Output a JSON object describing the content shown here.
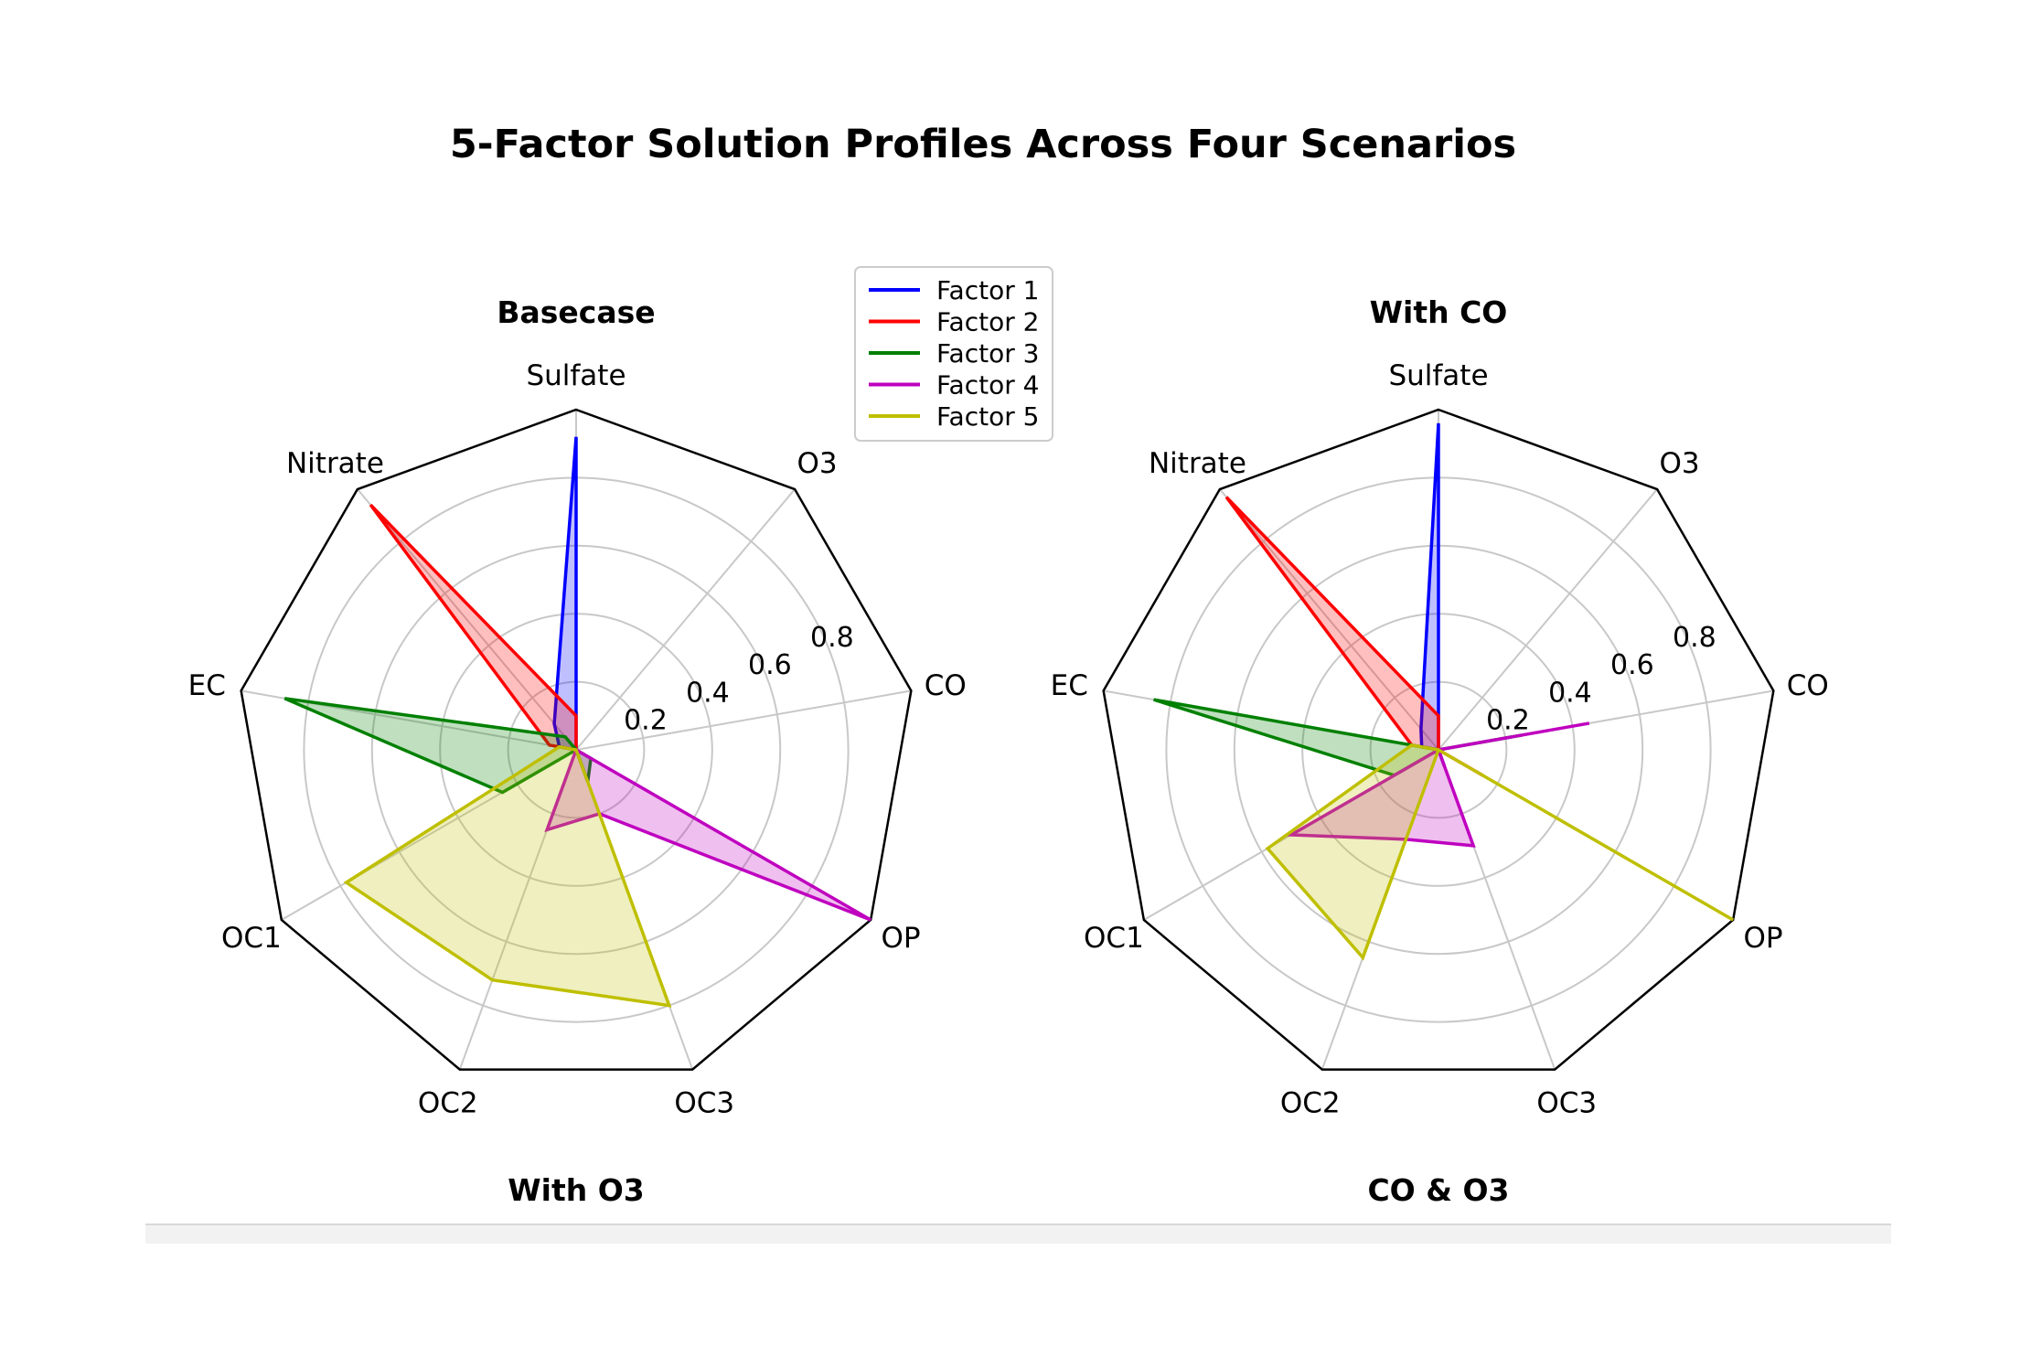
{
  "figure": {
    "title": "5-Factor Solution Profiles Across Four Scenarios",
    "bottom_titles": [
      "With O3",
      "CO & O3"
    ]
  },
  "legend": {
    "position": "top-center",
    "entries": [
      {
        "label": "Factor 1",
        "color": "#0000ff"
      },
      {
        "label": "Factor 2",
        "color": "#ff0000"
      },
      {
        "label": "Factor 3",
        "color": "#008000"
      },
      {
        "label": "Factor 4",
        "color": "#bf00bf"
      },
      {
        "label": "Factor 5",
        "color": "#bfbf00"
      }
    ]
  },
  "chart_data": [
    {
      "type": "radar",
      "title": "Basecase",
      "axes": [
        "Sulfate",
        "O3",
        "CO",
        "OP",
        "OC3",
        "OC2",
        "OC1",
        "EC",
        "Nitrate"
      ],
      "radial_ticks": [
        "0.2",
        "0.4",
        "0.6",
        "0.8"
      ],
      "tick_values": [
        0.2,
        0.4,
        0.6,
        0.8
      ],
      "rlim": [
        0,
        1.0
      ],
      "grid": true,
      "series": [
        {
          "name": "Factor 1",
          "color": "#0000ff",
          "values": [
            0.92,
            0.0,
            0.0,
            0.0,
            0.1,
            0.0,
            0.0,
            0.05,
            0.1
          ]
        },
        {
          "name": "Factor 2",
          "color": "#ff0000",
          "values": [
            0.1,
            0.0,
            0.0,
            0.0,
            0.0,
            0.0,
            0.0,
            0.08,
            0.94
          ]
        },
        {
          "name": "Factor 3",
          "color": "#008000",
          "values": [
            0.0,
            0.0,
            0.0,
            0.05,
            0.1,
            0.0,
            0.25,
            0.87,
            0.05
          ]
        },
        {
          "name": "Factor 4",
          "color": "#bf00bf",
          "values": [
            0.0,
            0.0,
            0.0,
            1.0,
            0.2,
            0.25,
            0.0,
            0.05,
            0.0
          ]
        },
        {
          "name": "Factor 5",
          "color": "#bfbf00",
          "values": [
            0.0,
            0.0,
            0.0,
            0.0,
            0.8,
            0.72,
            0.78,
            0.05,
            0.0
          ]
        }
      ]
    },
    {
      "type": "radar",
      "title": "With CO",
      "axes": [
        "Sulfate",
        "O3",
        "CO",
        "OP",
        "OC3",
        "OC2",
        "OC1",
        "EC",
        "Nitrate"
      ],
      "radial_ticks": [
        "0.2",
        "0.4",
        "0.6",
        "0.8"
      ],
      "tick_values": [
        0.2,
        0.4,
        0.6,
        0.8
      ],
      "rlim": [
        0,
        1.0
      ],
      "grid": true,
      "series": [
        {
          "name": "Factor 1",
          "color": "#0000ff",
          "values": [
            0.96,
            0.0,
            0.0,
            0.0,
            0.05,
            0.0,
            0.0,
            0.05,
            0.08
          ]
        },
        {
          "name": "Factor 2",
          "color": "#ff0000",
          "values": [
            0.1,
            0.0,
            0.0,
            0.15,
            0.0,
            0.0,
            0.0,
            0.08,
            0.97
          ]
        },
        {
          "name": "Factor 3",
          "color": "#008000",
          "values": [
            0.0,
            0.0,
            0.25,
            0.0,
            0.0,
            0.0,
            0.15,
            0.85,
            0.0
          ]
        },
        {
          "name": "Factor 4",
          "color": "#bf00bf",
          "values": [
            0.0,
            0.0,
            0.45,
            0.0,
            0.3,
            0.28,
            0.5,
            0.0,
            0.0
          ]
        },
        {
          "name": "Factor 5",
          "color": "#bfbf00",
          "values": [
            0.0,
            0.0,
            0.0,
            1.0,
            0.0,
            0.65,
            0.58,
            0.08,
            0.0
          ]
        }
      ]
    }
  ]
}
